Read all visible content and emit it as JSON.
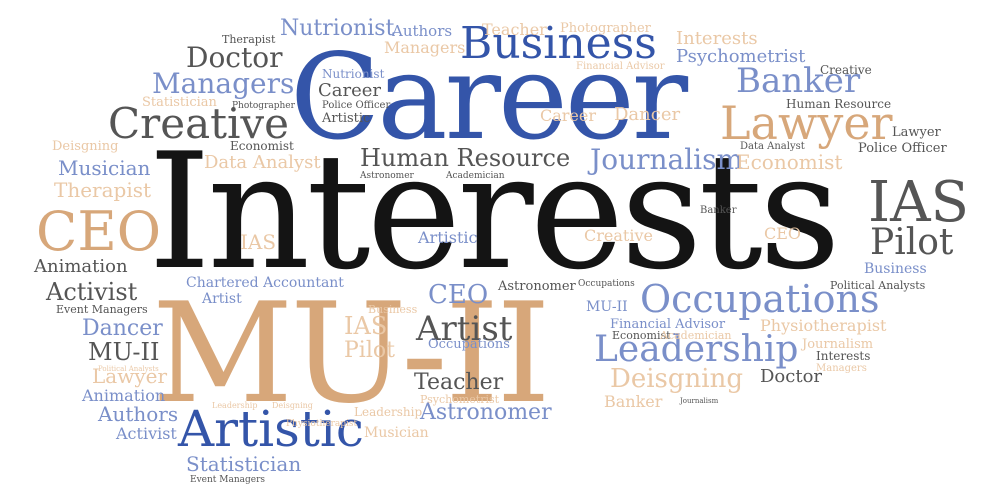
{
  "cloud": {
    "colors": {
      "blue": "#3455a9",
      "light_blue": "#7a8fc9",
      "tan": "#d7a77a",
      "light_tan": "#eac8a6",
      "black": "#141414",
      "gray": "#555555",
      "light_gray": "#8a8a8a"
    },
    "words": [
      {
        "id": "interests",
        "text": "Interests",
        "color": "black"
      },
      {
        "id": "mu-ii-main",
        "text": "MU-II",
        "color": "tan"
      },
      {
        "id": "career-main",
        "text": "Career",
        "color": "blue"
      },
      {
        "id": "business-top",
        "text": "Business",
        "color": "blue"
      },
      {
        "id": "artistic-main",
        "text": "Artistic",
        "color": "blue"
      },
      {
        "id": "occupations-main",
        "text": "Occupations",
        "color": "light_blue"
      },
      {
        "id": "leadership-main",
        "text": "Leadership",
        "color": "light_blue"
      },
      {
        "id": "lawyer-main",
        "text": "Lawyer",
        "color": "tan"
      },
      {
        "id": "ceo-left",
        "text": "CEO",
        "color": "tan"
      },
      {
        "id": "ias-right",
        "text": "IAS",
        "color": "gray"
      },
      {
        "id": "creative-left",
        "text": "Creative",
        "color": "gray"
      },
      {
        "id": "banker-top",
        "text": "Banker",
        "color": "light_blue"
      },
      {
        "id": "pilot-right",
        "text": "Pilot",
        "color": "gray"
      },
      {
        "id": "artist-center",
        "text": "Artist",
        "color": "gray"
      },
      {
        "id": "human-resource-main",
        "text": "Human Resource",
        "color": "gray"
      },
      {
        "id": "journalism-main",
        "text": "Journalism",
        "color": "light_blue"
      },
      {
        "id": "managers-left",
        "text": "Managers",
        "color": "light_blue"
      },
      {
        "id": "doctor-left",
        "text": "Doctor",
        "color": "gray"
      },
      {
        "id": "nutrionist-top",
        "text": "Nutrionist",
        "color": "light_blue"
      },
      {
        "id": "authors-top",
        "text": "Authors",
        "color": "light_blue"
      },
      {
        "id": "teacher-top",
        "text": "Teacher",
        "color": "light_tan"
      },
      {
        "id": "photographer-top",
        "text": "Photographer",
        "color": "light_tan"
      },
      {
        "id": "therapist-top",
        "text": "Therapist",
        "color": "gray"
      },
      {
        "id": "managers-top",
        "text": "Managers",
        "color": "light_tan"
      },
      {
        "id": "interests-top",
        "text": "Interests",
        "color": "light_tan"
      },
      {
        "id": "psychometrist-top",
        "text": "Psychometrist",
        "color": "light_blue"
      },
      {
        "id": "financial-advisor-top",
        "text": "Financial Advisor",
        "color": "light_tan"
      },
      {
        "id": "creative-top",
        "text": "Creative",
        "color": "gray"
      },
      {
        "id": "nutrionist-small",
        "text": "Nutrionist",
        "color": "light_blue"
      },
      {
        "id": "career-small",
        "text": "Career",
        "color": "gray"
      },
      {
        "id": "police-officer-small",
        "text": "Police Officer",
        "color": "gray"
      },
      {
        "id": "artistic-small",
        "text": "Artistic",
        "color": "gray"
      },
      {
        "id": "statistician-left",
        "text": "Statistician",
        "color": "light_tan"
      },
      {
        "id": "photographer-small",
        "text": "Photographer",
        "color": "gray"
      },
      {
        "id": "career-mid",
        "text": "Career",
        "color": "light_tan"
      },
      {
        "id": "dancer-top",
        "text": "Dancer",
        "color": "light_tan"
      },
      {
        "id": "human-resource-small",
        "text": "Human Resource",
        "color": "gray"
      },
      {
        "id": "lawyer-small",
        "text": "Lawyer",
        "color": "gray"
      },
      {
        "id": "police-officer-right",
        "text": "Police Officer",
        "color": "gray"
      },
      {
        "id": "data-analyst-right",
        "text": "Data Analyst",
        "color": "gray"
      },
      {
        "id": "economist-right",
        "text": "Economist",
        "color": "light_tan"
      },
      {
        "id": "economist-left",
        "text": "Economist",
        "color": "gray"
      },
      {
        "id": "deisgning-left",
        "text": "Deisgning",
        "color": "light_tan"
      },
      {
        "id": "musician-left",
        "text": "Musician",
        "color": "light_blue"
      },
      {
        "id": "data-analyst-left",
        "text": "Data Analyst",
        "color": "light_tan"
      },
      {
        "id": "therapist-left",
        "text": "Therapist",
        "color": "light_tan"
      },
      {
        "id": "astronomer-small",
        "text": "Astronomer",
        "color": "gray"
      },
      {
        "id": "academician-small",
        "text": "Academician",
        "color": "gray"
      },
      {
        "id": "banker-small",
        "text": "Banker",
        "color": "gray"
      },
      {
        "id": "ias-small",
        "text": "IAS",
        "color": "light_tan"
      },
      {
        "id": "artistic-mid",
        "text": "Artistic",
        "color": "light_blue"
      },
      {
        "id": "creative-mid",
        "text": "Creative",
        "color": "light_tan"
      },
      {
        "id": "ceo-small",
        "text": "CEO",
        "color": "light_tan"
      },
      {
        "id": "animation-left",
        "text": "Animation",
        "color": "gray"
      },
      {
        "id": "business-right",
        "text": "Business",
        "color": "light_blue"
      },
      {
        "id": "activist-left",
        "text": "Activist",
        "color": "gray"
      },
      {
        "id": "chartered-accountant",
        "text": "Chartered Accountant",
        "color": "light_blue"
      },
      {
        "id": "ceo-center",
        "text": "CEO",
        "color": "light_blue"
      },
      {
        "id": "astronomer-center",
        "text": "Astronomer",
        "color": "gray"
      },
      {
        "id": "occupations-small",
        "text": "Occupations",
        "color": "gray"
      },
      {
        "id": "political-analysts",
        "text": "Political Analysts",
        "color": "gray"
      },
      {
        "id": "event-managers-left",
        "text": "Event Managers",
        "color": "gray"
      },
      {
        "id": "artist-small",
        "text": "Artist",
        "color": "light_blue"
      },
      {
        "id": "business-small",
        "text": "Business",
        "color": "light_tan"
      },
      {
        "id": "mu-ii-small-right",
        "text": "MU-II",
        "color": "light_blue"
      },
      {
        "id": "financial-advisor-mid",
        "text": "Financial Advisor",
        "color": "light_blue"
      },
      {
        "id": "physiotherapist-right",
        "text": "Physiotherapist",
        "color": "light_tan"
      },
      {
        "id": "dancer-left",
        "text": "Dancer",
        "color": "light_blue"
      },
      {
        "id": "ias-center",
        "text": "IAS",
        "color": "light_tan"
      },
      {
        "id": "occupations-center",
        "text": "Occupations",
        "color": "light_blue"
      },
      {
        "id": "economist-small",
        "text": "Economist",
        "color": "gray"
      },
      {
        "id": "academician-mid",
        "text": "Academician",
        "color": "light_tan"
      },
      {
        "id": "journalism-right",
        "text": "Journalism",
        "color": "light_tan"
      },
      {
        "id": "mu-ii-left",
        "text": "MU-II",
        "color": "gray"
      },
      {
        "id": "pilot-center",
        "text": "Pilot",
        "color": "light_tan"
      },
      {
        "id": "interests-small",
        "text": "Interests",
        "color": "gray"
      },
      {
        "id": "political-analysts-small",
        "text": "Political Analysts",
        "color": "light_tan"
      },
      {
        "id": "managers-small",
        "text": "Managers",
        "color": "light_tan"
      },
      {
        "id": "lawyer-left",
        "text": "Lawyer",
        "color": "light_tan"
      },
      {
        "id": "teacher-center",
        "text": "Teacher",
        "color": "gray"
      },
      {
        "id": "psychometrist-small",
        "text": "Psychometrist",
        "color": "light_tan"
      },
      {
        "id": "deisgning-center",
        "text": "Deisgning",
        "color": "light_tan"
      },
      {
        "id": "doctor-right",
        "text": "Doctor",
        "color": "gray"
      },
      {
        "id": "animation-left-2",
        "text": "Animation",
        "color": "light_blue"
      },
      {
        "id": "authors-left",
        "text": "Authors",
        "color": "light_blue"
      },
      {
        "id": "leadership-small",
        "text": "Leadership",
        "color": "light_tan"
      },
      {
        "id": "deisgning-small",
        "text": "Deisgning",
        "color": "light_tan"
      },
      {
        "id": "leadership-mid",
        "text": "Leadership",
        "color": "light_tan"
      },
      {
        "id": "astronomer-main",
        "text": "Astronomer",
        "color": "light_blue"
      },
      {
        "id": "banker-bottom",
        "text": "Banker",
        "color": "light_tan"
      },
      {
        "id": "journalism-small",
        "text": "Journalism",
        "color": "gray"
      },
      {
        "id": "activist-bottom",
        "text": "Activist",
        "color": "light_blue"
      },
      {
        "id": "physiotherapist-small",
        "text": "Physiotherapist",
        "color": "light_tan"
      },
      {
        "id": "musician-bottom",
        "text": "Musician",
        "color": "light_tan"
      },
      {
        "id": "statistician-bottom",
        "text": "Statistician",
        "color": "light_blue"
      },
      {
        "id": "event-managers-bottom",
        "text": "Event Managers",
        "color": "gray"
      }
    ]
  }
}
